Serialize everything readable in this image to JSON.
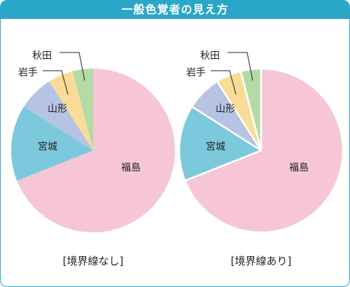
{
  "title": "一般色覚者の見え方",
  "colors": {
    "frame": "#2aa6c8",
    "leader": "#231f20"
  },
  "chart_data": [
    {
      "type": "pie",
      "caption": "[境界線なし]",
      "border": false,
      "slices": [
        {
          "label": "福島",
          "value": 69,
          "color": "#f6c6d6"
        },
        {
          "label": "宮城",
          "value": 15,
          "color": "#7cc8dc"
        },
        {
          "label": "山形",
          "value": 7,
          "color": "#b7c3e3"
        },
        {
          "label": "岩手",
          "value": 5,
          "color": "#f9dc98"
        },
        {
          "label": "秋田",
          "value": 4,
          "color": "#b4dba6"
        }
      ]
    },
    {
      "type": "pie",
      "caption": "[境界線あり]",
      "border": true,
      "slices": [
        {
          "label": "福島",
          "value": 69,
          "color": "#f6c6d6"
        },
        {
          "label": "宮城",
          "value": 15,
          "color": "#7cc8dc"
        },
        {
          "label": "山形",
          "value": 7,
          "color": "#b7c3e3"
        },
        {
          "label": "岩手",
          "value": 5,
          "color": "#f9dc98"
        },
        {
          "label": "秋田",
          "value": 4,
          "color": "#b4dba6"
        }
      ]
    }
  ]
}
